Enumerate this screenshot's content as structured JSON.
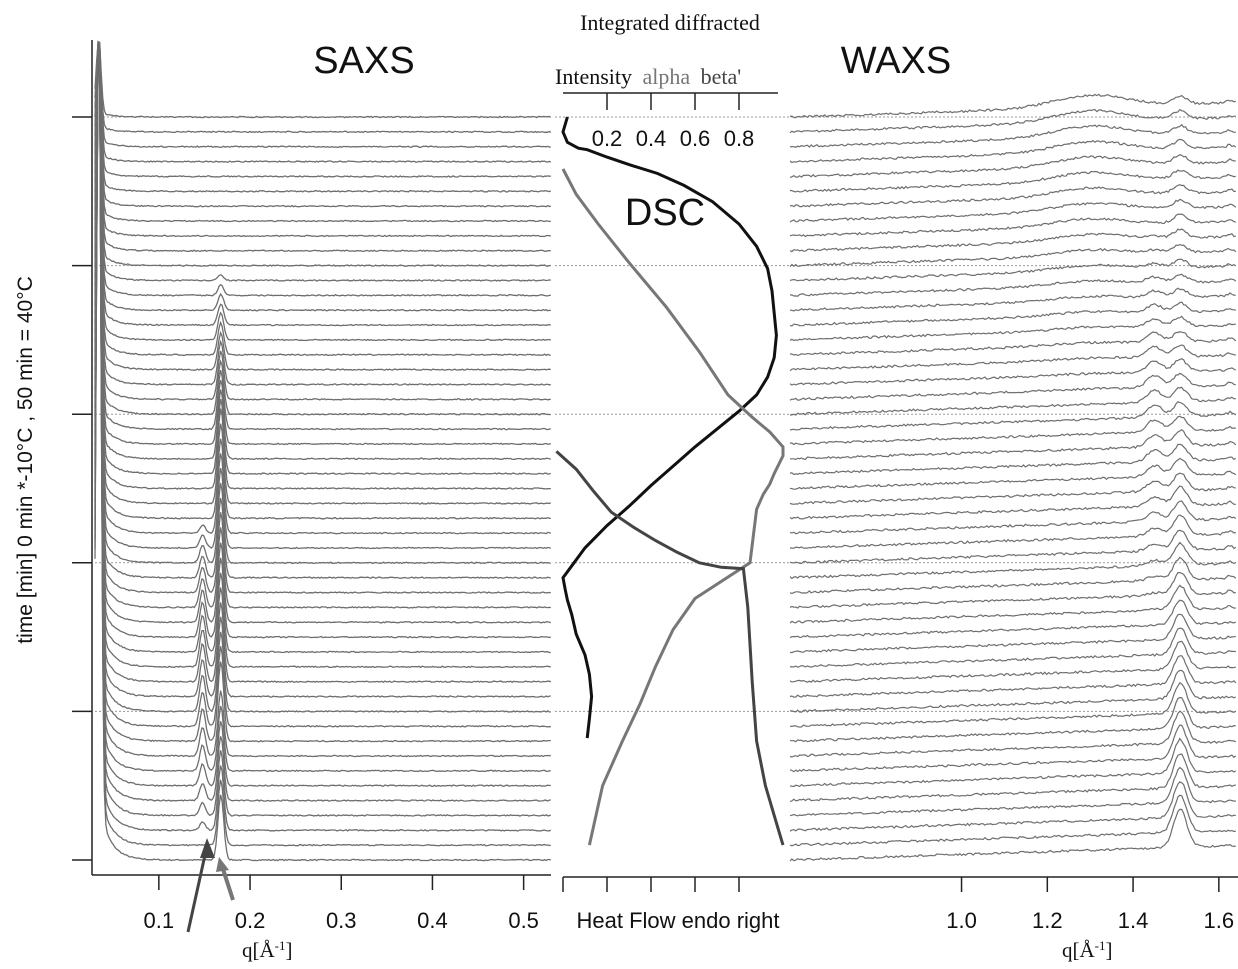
{
  "colors": {
    "trace": "#6e6e6e",
    "axis": "#222222",
    "dsc": "#111111",
    "alpha": "#777777",
    "beta": "#444444",
    "guide": "#9a9a9a"
  },
  "labels": {
    "saxs_title": "SAXS",
    "waxs_title": "WAXS",
    "dsc_label": "DSC",
    "top_line1": "Integrated diffracted",
    "top_word_intensity": "Intensity",
    "top_word_alpha": "alpha",
    "top_word_beta": "beta'",
    "ylabel": "time [min] 0 min *-10°C , 50 min = 40°C",
    "saxs_xlabel": "q[Å-1]",
    "waxs_xlabel": "q[Å-1]",
    "dsc_xlabel": "Heat Flow endo right"
  },
  "chart_data": [
    {
      "type": "line",
      "name": "saxs",
      "title": "SAXS",
      "xlabel": "q[Å-1]",
      "ylabel": "time [min] 0 min *-10°C , 50 min = 40°C",
      "xlim": [
        0.03,
        0.53
      ],
      "ylim": [
        0,
        55
      ],
      "xticks": [
        0.1,
        0.2,
        0.3,
        0.4,
        0.5
      ],
      "xtick_labels": [
        "0.1",
        "0.2",
        "0.3",
        "0.4",
        "0.5"
      ],
      "yticks": [
        0,
        10,
        20,
        30,
        40,
        50
      ],
      "guide_times": [
        10,
        20,
        30,
        40,
        50
      ],
      "trace_count": 51,
      "trace_time_step": 1,
      "peaks": [
        {
          "q": 0.034,
          "description": "strong low-q peak"
        },
        {
          "q": 0.148,
          "time_range": [
            2,
            22
          ]
        },
        {
          "q": 0.168,
          "time_range": [
            0,
            40
          ]
        }
      ]
    },
    {
      "type": "line",
      "name": "integrated-intensity",
      "top_axis_label": "Intensity alpha beta'",
      "bottom_axis_label": "Heat Flow endo right",
      "xlim": [
        0,
        1
      ],
      "xticks": [
        0.2,
        0.4,
        0.6,
        0.8
      ],
      "xtick_labels": [
        "0.2",
        "0.4",
        "0.6",
        "0.8"
      ],
      "ylim": [
        0,
        55
      ],
      "series": [
        {
          "name": "DSC",
          "x": [
            0.02,
            0.0,
            0.02,
            0.07,
            0.11,
            0.2,
            0.3,
            0.43,
            0.55,
            0.68,
            0.8,
            0.88,
            0.93,
            0.95,
            0.96,
            0.97,
            0.96,
            0.93,
            0.88,
            0.8,
            0.7,
            0.6,
            0.5,
            0.4,
            0.3,
            0.2,
            0.1,
            0.04,
            0.0,
            0.01,
            0.02,
            0.04,
            0.06,
            0.1,
            0.12,
            0.13,
            0.12,
            0.11
          ],
          "y": [
            50,
            49,
            48.3,
            47.9,
            47.8,
            47.3,
            46.8,
            46.2,
            45.4,
            44.3,
            42.8,
            41.3,
            39.8,
            38.3,
            36.8,
            35.3,
            33.8,
            32.5,
            31.3,
            30.2,
            29,
            27.8,
            26.5,
            25.2,
            23.8,
            22.5,
            21,
            19.8,
            19,
            18.2,
            17.5,
            16.5,
            15.2,
            13.8,
            12.5,
            11,
            9.5,
            8.2
          ]
        },
        {
          "name": "alpha",
          "x": [
            0.0,
            0.06,
            0.16,
            0.3,
            0.47,
            0.62,
            0.75,
            0.86,
            0.94,
            1.0,
            1.0,
            0.98,
            0.96,
            0.94,
            0.91,
            0.88,
            0.85,
            0.6,
            0.5,
            0.42,
            0.35,
            0.27,
            0.18,
            0.12
          ],
          "y": [
            46.5,
            44.8,
            42.8,
            40.2,
            37.2,
            34.2,
            31.3,
            29.8,
            28.8,
            27.8,
            27.2,
            26.6,
            26,
            25.3,
            24.6,
            23.6,
            20,
            17.6,
            15.5,
            13,
            10.5,
            8,
            5,
            1
          ]
        },
        {
          "name": "beta'",
          "x": [
            -0.03,
            0.06,
            0.14,
            0.22,
            0.32,
            0.42,
            0.52,
            0.62,
            0.72,
            0.82,
            0.84,
            0.85,
            0.86,
            0.87,
            0.88,
            0.9,
            0.92,
            0.95,
            0.98,
            1.0
          ],
          "y": [
            27.5,
            26.3,
            24.8,
            23.4,
            22.4,
            21.5,
            20.7,
            20,
            19.7,
            19.6,
            17,
            14.5,
            12,
            10,
            8,
            6.5,
            5,
            3.5,
            2,
            1
          ]
        }
      ]
    },
    {
      "type": "line",
      "name": "waxs",
      "title": "WAXS",
      "xlabel": "q[Å-1]",
      "xlim": [
        0.6,
        1.64
      ],
      "ylim": [
        0,
        55
      ],
      "xticks": [
        1.0,
        1.2,
        1.4,
        1.6
      ],
      "xtick_labels": [
        "1.0",
        "1.2",
        "1.4",
        "1.6"
      ],
      "guide_times": [
        10,
        20,
        30,
        40,
        50
      ],
      "trace_count": 51,
      "trace_time_step": 1,
      "peaks": [
        {
          "q": 1.51,
          "description": "main beta-prime/beta peak, grows toward early times"
        },
        {
          "q": 1.45,
          "description": "weaker shoulder at intermediate times"
        },
        {
          "q": 1.3,
          "description": "broad hump at late times"
        }
      ]
    }
  ]
}
